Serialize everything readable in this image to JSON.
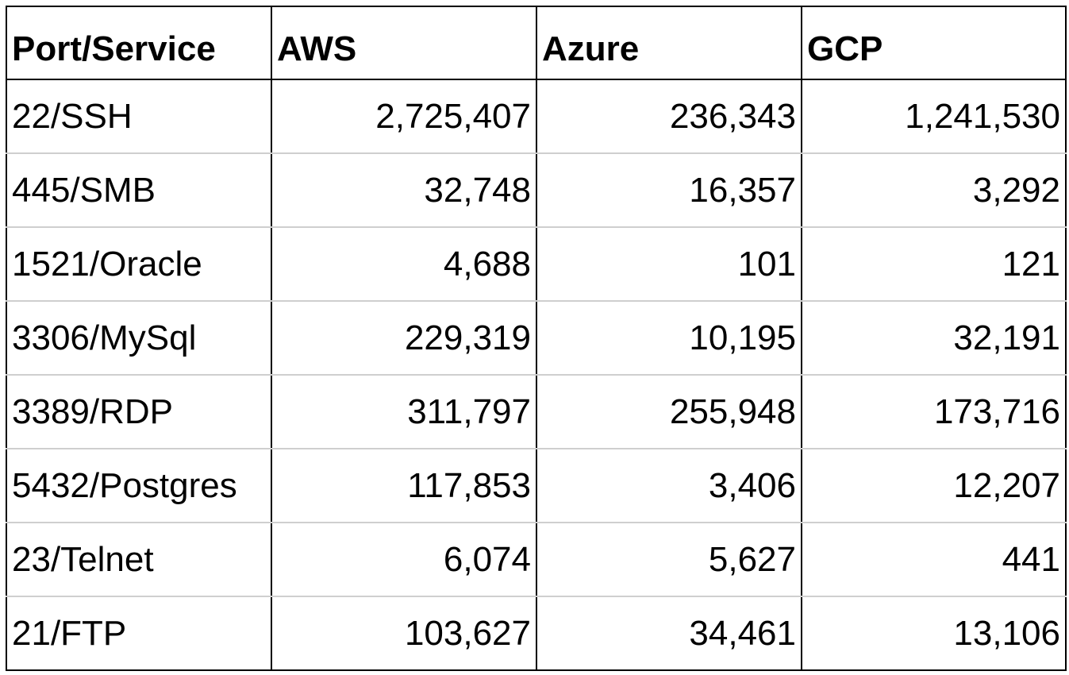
{
  "table": {
    "headers": [
      "Port/Service",
      "AWS",
      "Azure",
      "GCP"
    ],
    "rows": [
      {
        "service": "22/SSH",
        "aws": "2,725,407",
        "azure": "236,343",
        "gcp": "1,241,530"
      },
      {
        "service": "445/SMB",
        "aws": "32,748",
        "azure": "16,357",
        "gcp": "3,292"
      },
      {
        "service": "1521/Oracle",
        "aws": "4,688",
        "azure": "101",
        "gcp": "121"
      },
      {
        "service": "3306/MySql",
        "aws": "229,319",
        "azure": "10,195",
        "gcp": "32,191"
      },
      {
        "service": "3389/RDP",
        "aws": "311,797",
        "azure": "255,948",
        "gcp": "173,716"
      },
      {
        "service": "5432/Postgres",
        "aws": "117,853",
        "azure": "3,406",
        "gcp": "12,207"
      },
      {
        "service": "23/Telnet",
        "aws": "6,074",
        "azure": "5,627",
        "gcp": "441"
      },
      {
        "service": "21/FTP",
        "aws": "103,627",
        "azure": "34,461",
        "gcp": "13,106"
      }
    ]
  },
  "colors": {
    "border": "#000000",
    "row_divider": "#cfcfcf",
    "text": "#000000",
    "background": "#ffffff"
  }
}
